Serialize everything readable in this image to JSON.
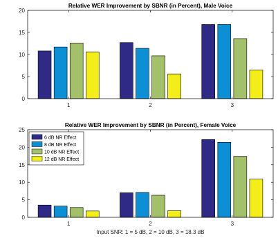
{
  "chart_data": [
    {
      "type": "bar",
      "title": "Relative WER Improvement by SBNR (in Percent), Male Voice",
      "xlabel": "",
      "ylabel": "",
      "categories": [
        "1",
        "2",
        "3"
      ],
      "ylim": [
        0,
        20
      ],
      "yticks": [
        0,
        5,
        10,
        15,
        20
      ],
      "grid": false,
      "legend": null,
      "series": [
        {
          "name": "6 dB NR Effect",
          "color": "#2e2a86",
          "values": [
            10.8,
            12.7,
            16.8
          ]
        },
        {
          "name": "8 dB NR Effect",
          "color": "#0c8fd4",
          "values": [
            11.7,
            11.4,
            16.8
          ]
        },
        {
          "name": "10 dB NR Effect",
          "color": "#a3c16b",
          "values": [
            12.6,
            9.7,
            13.6
          ]
        },
        {
          "name": "12 dB NR Effect",
          "color": "#f3ee1a",
          "values": [
            10.6,
            5.6,
            6.5
          ]
        }
      ]
    },
    {
      "type": "bar",
      "title": "Relative WER Improvement by SBNR (in Percent), Female Voice",
      "xlabel": "Input SNR: 1 = 5 dB, 2 = 10 dB, 3 = 18.3 dB",
      "ylabel": "",
      "categories": [
        "1",
        "2",
        "3"
      ],
      "ylim": [
        0,
        25
      ],
      "yticks": [
        0,
        5,
        10,
        15,
        20,
        25
      ],
      "grid": false,
      "legend": "top-left",
      "series": [
        {
          "name": "6 dB NR Effect",
          "color": "#2e2a86",
          "values": [
            3.5,
            7.0,
            22.2
          ]
        },
        {
          "name": "8 dB NR Effect",
          "color": "#0c8fd4",
          "values": [
            3.2,
            7.1,
            21.4
          ]
        },
        {
          "name": "10 dB NR Effect",
          "color": "#a3c16b",
          "values": [
            2.8,
            6.3,
            17.4
          ]
        },
        {
          "name": "12 dB NR Effect",
          "color": "#f3ee1a",
          "values": [
            1.8,
            1.9,
            10.9
          ]
        }
      ]
    }
  ]
}
